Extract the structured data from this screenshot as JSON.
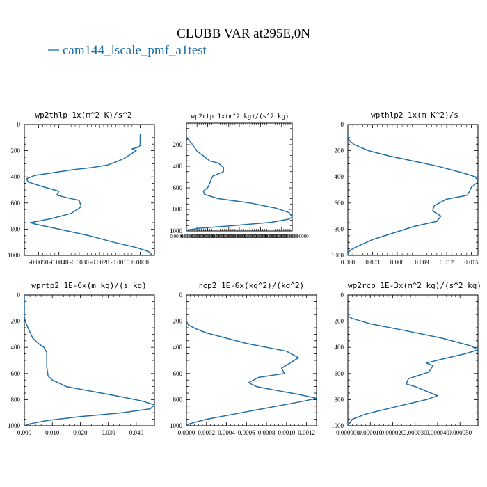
{
  "title": "CLUBB VAR at295E,0N",
  "legend": {
    "label": "cam144_lscale_pmf_a1test",
    "color": "#1f6fa6"
  },
  "chart_data": [
    {
      "type": "line",
      "title": "wp2thlp  1x(m^2 K)/s^2",
      "xlim": [
        -0.0057,
        0.0007
      ],
      "ylim": [
        1000,
        0
      ],
      "xticks": [
        -0.005,
        -0.004,
        -0.003,
        -0.002,
        -0.001,
        0.0
      ],
      "xtick_labels": [
        "-0.0050",
        "-0.0040",
        "-0.0030",
        "-0.0020",
        "-0.0010",
        "0.0000"
      ],
      "yticks": [
        0,
        200,
        400,
        600,
        800,
        1000
      ],
      "series": [
        {
          "x": [
            0.0,
            0.0,
            -0.0001,
            -0.0004,
            -0.0002,
            -0.0008,
            -0.0011,
            -0.0016,
            -0.0024,
            -0.0033,
            -0.0052,
            -0.0056,
            -0.0055,
            -0.0049,
            -0.004,
            -0.0041,
            -0.0036,
            -0.003,
            -0.0029,
            -0.0034,
            -0.0044,
            -0.0054,
            -0.0052,
            -0.004,
            -0.0025,
            -0.0013,
            -0.0002,
            0.0004,
            0.0006
          ],
          "y": [
            70,
            160,
            175,
            185,
            200,
            260,
            280,
            310,
            330,
            345,
            390,
            415,
            440,
            470,
            510,
            540,
            560,
            580,
            630,
            680,
            720,
            750,
            760,
            800,
            850,
            900,
            940,
            970,
            1000
          ]
        }
      ]
    },
    {
      "type": "line",
      "title": "wp2rtp  1x(m^2 kg)/(s^2 kg)",
      "xlim": [
        0,
        1
      ],
      "ylim": [
        1000,
        0
      ],
      "xticks": [
        0,
        0.1,
        0.2,
        0.3,
        0.4,
        0.5,
        0.6,
        0.7,
        0.8,
        0.9,
        1.0
      ],
      "xtick_labels": [
        "0.000000000000",
        "0.000000000000",
        "0.000000000000",
        "0.000000000000",
        "0.000000000000",
        "0.000000000000",
        "0.000000000000",
        "0.000000000000",
        "0.000000000000",
        "0.000000000000",
        "0.000000000000"
      ],
      "yticks": [
        200,
        400,
        600,
        800,
        1000
      ],
      "series": [
        {
          "x": [
            0.0,
            0.02,
            0.05,
            0.08,
            0.1,
            0.17,
            0.22,
            0.3,
            0.35,
            0.35,
            0.25,
            0.23,
            0.22,
            0.2,
            0.16,
            0.17,
            0.3,
            0.6,
            0.85,
            0.97,
            1.0,
            0.97,
            0.8,
            0.45,
            0.12,
            0.02,
            0.0
          ],
          "y": [
            130,
            150,
            190,
            230,
            260,
            310,
            350,
            370,
            410,
            450,
            490,
            530,
            560,
            600,
            630,
            660,
            700,
            740,
            790,
            830,
            870,
            890,
            920,
            950,
            975,
            990,
            1000
          ]
        }
      ]
    },
    {
      "type": "line",
      "title": "wpthlp2  1x(m K^2)/s",
      "xlim": [
        0,
        0.0158
      ],
      "ylim": [
        1000,
        0
      ],
      "xticks": [
        0,
        0.003,
        0.006,
        0.009,
        0.012,
        0.015
      ],
      "xtick_labels": [
        "0.000",
        "0.003",
        "0.006",
        "0.009",
        "0.012",
        "0.015"
      ],
      "yticks": [
        0,
        200,
        400,
        600,
        800,
        1000
      ],
      "series": [
        {
          "x": [
            0.0,
            0.0,
            0.0003,
            0.0008,
            0.0025,
            0.005,
            0.008,
            0.011,
            0.014,
            0.0155,
            0.0158,
            0.015,
            0.0147,
            0.0145,
            0.0138,
            0.012,
            0.0105,
            0.0103,
            0.0113,
            0.0108,
            0.008,
            0.0055,
            0.003,
            0.0012,
            0.0003,
            0.0,
            0.0
          ],
          "y": [
            70,
            100,
            130,
            155,
            200,
            240,
            280,
            320,
            370,
            400,
            440,
            480,
            520,
            540,
            550,
            570,
            620,
            660,
            700,
            740,
            780,
            830,
            880,
            930,
            960,
            985,
            1000
          ]
        }
      ]
    },
    {
      "type": "line",
      "title": "wprtp2  1E-6x(m kg)/(s kg)",
      "xlim": [
        0,
        0.0465
      ],
      "ylim": [
        1000,
        0
      ],
      "xticks": [
        0,
        0.01,
        0.02,
        0.03,
        0.04
      ],
      "xtick_labels": [
        "0.000",
        "0.010",
        "0.020",
        "0.030",
        "0.040"
      ],
      "yticks": [
        0,
        200,
        400,
        600,
        800,
        1000
      ],
      "series": [
        {
          "x": [
            0.0,
            0.0,
            0.0005,
            0.0015,
            0.003,
            0.005,
            0.007,
            0.008,
            0.008,
            0.0085,
            0.01,
            0.015,
            0.025,
            0.035,
            0.042,
            0.0465,
            0.045,
            0.035,
            0.02,
            0.008,
            0.002,
            0.0
          ],
          "y": [
            0,
            170,
            210,
            260,
            330,
            370,
            400,
            440,
            550,
            620,
            650,
            700,
            740,
            780,
            810,
            840,
            870,
            900,
            930,
            960,
            985,
            1000
          ]
        }
      ]
    },
    {
      "type": "line",
      "title": "rcp2  1E-6x(kg^2)/(kg^2)",
      "xlim": [
        0,
        0.0013
      ],
      "ylim": [
        1000,
        0
      ],
      "xticks": [
        0,
        0.0002,
        0.0004,
        0.0006,
        0.0008,
        0.001,
        0.0012
      ],
      "xtick_labels": [
        "0.0000",
        "0.0002",
        "0.0004",
        "0.0006",
        "0.0008",
        "0.0010",
        "0.0012"
      ],
      "yticks": [
        0,
        200,
        400,
        600,
        800,
        1000
      ],
      "series": [
        {
          "x": [
            0.0,
            2e-05,
            0.0001,
            0.0002,
            0.0004,
            0.0006,
            0.0008,
            0.001,
            0.00112,
            0.00095,
            0.00098,
            0.00072,
            0.00062,
            0.0007,
            0.0009,
            0.00112,
            0.00124,
            0.0013,
            0.00118,
            0.0009,
            0.00055,
            0.0002,
            3e-05,
            0.0
          ],
          "y": [
            200,
            230,
            260,
            290,
            330,
            370,
            400,
            430,
            480,
            560,
            600,
            630,
            670,
            700,
            730,
            760,
            780,
            790,
            810,
            850,
            900,
            950,
            985,
            1000
          ]
        }
      ]
    },
    {
      "type": "line",
      "title": "wp2rcp  1E-3x(m^2 kg)/(s^2 kg)",
      "xlim": [
        0,
        5.8e-05
      ],
      "ylim": [
        1000,
        0
      ],
      "xticks": [
        0,
        1e-05,
        2e-05,
        3e-05,
        4e-05,
        5e-05
      ],
      "xtick_labels": [
        "0.000000",
        "0.000010",
        "0.000020",
        "0.000030",
        "0.000040",
        "0.000050"
      ],
      "yticks": [
        0,
        200,
        400,
        600,
        800,
        1000
      ],
      "series": [
        {
          "x": [
            0.0,
            0.0,
            2e-06,
            1e-05,
            2.5e-05,
            4.2e-05,
            5.5e-05,
            5.8e-05,
            5.2e-05,
            4.2e-05,
            3.5e-05,
            3.8e-05,
            3.6e-05,
            2.7e-05,
            2.6e-05,
            3e-05,
            3.7e-05,
            4e-05,
            3.5e-05,
            2e-05,
            8e-06,
            2e-06,
            0.0
          ],
          "y": [
            150,
            160,
            180,
            220,
            270,
            330,
            390,
            420,
            450,
            490,
            520,
            540,
            590,
            640,
            680,
            700,
            750,
            770,
            800,
            860,
            910,
            950,
            1000
          ]
        }
      ]
    }
  ]
}
